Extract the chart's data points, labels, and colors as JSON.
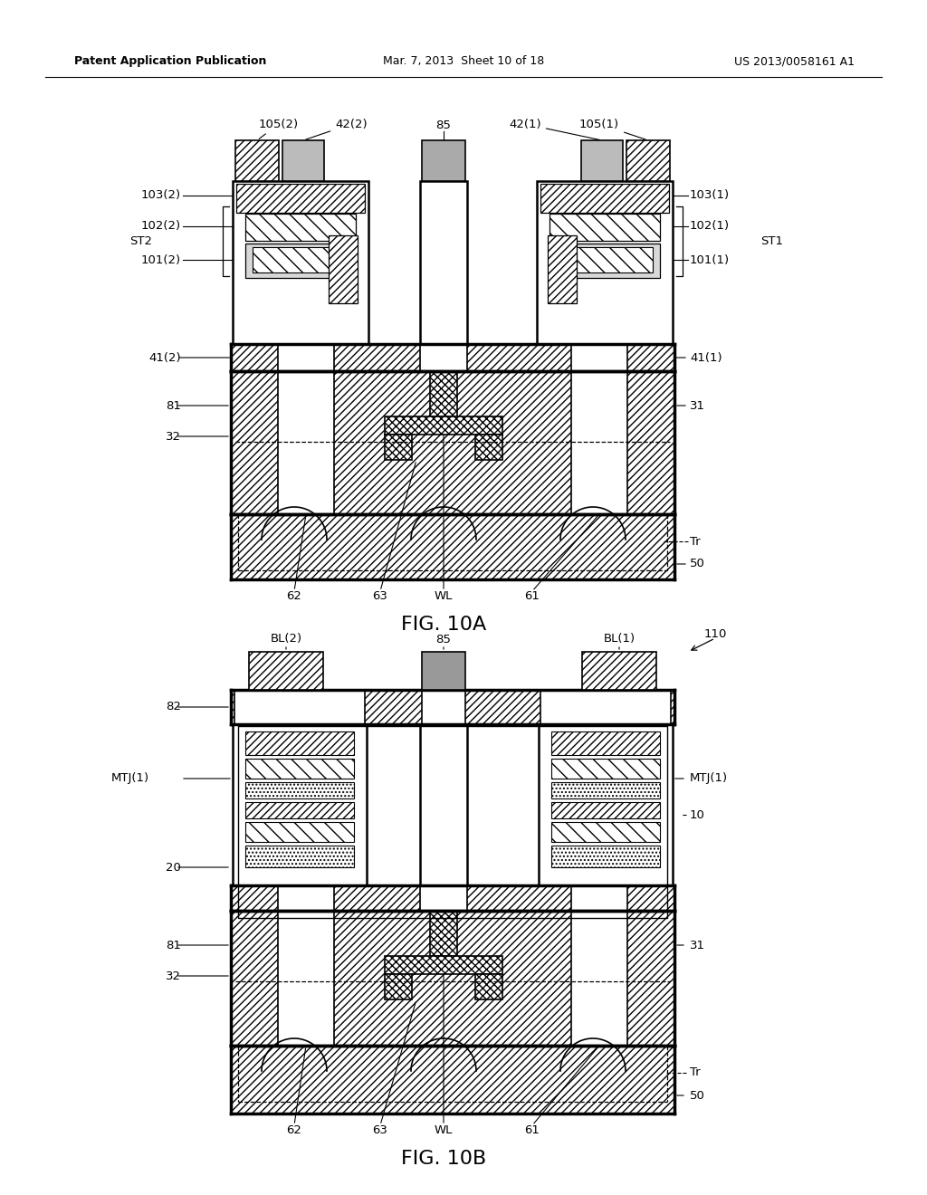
{
  "header_left": "Patent Application Publication",
  "header_mid": "Mar. 7, 2013  Sheet 10 of 18",
  "header_right": "US 2013/0058161 A1",
  "fig_a_title": "FIG. 10A",
  "fig_b_title": "FIG. 10B",
  "background": "#ffffff"
}
